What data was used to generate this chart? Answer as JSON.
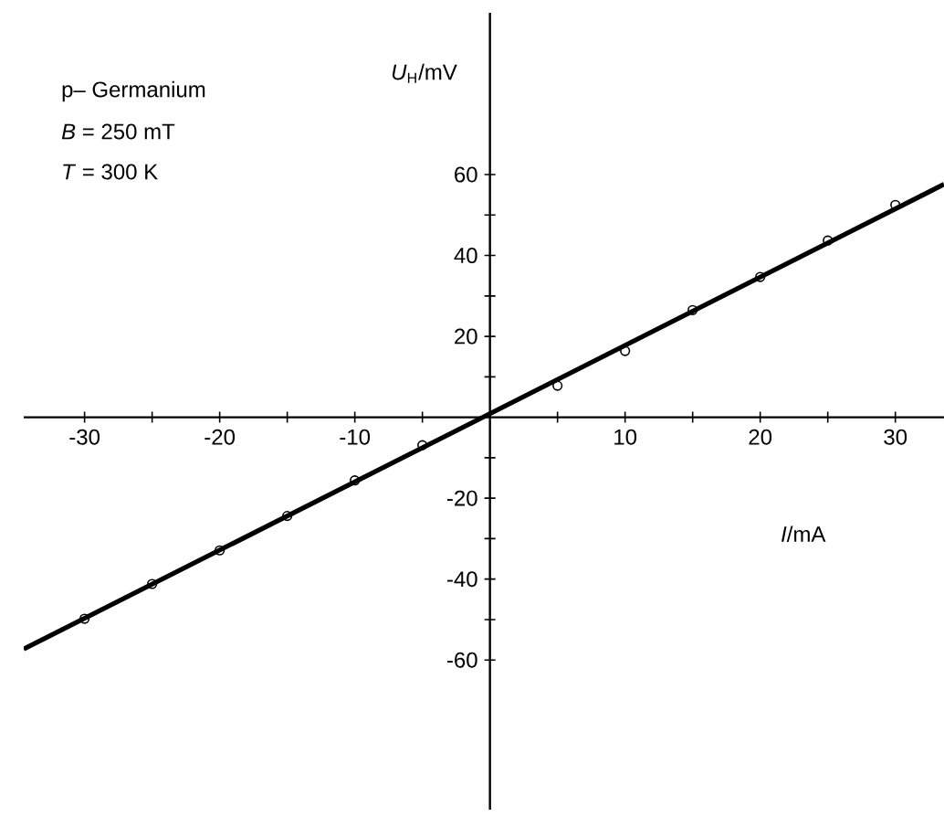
{
  "chart_data": {
    "type": "scatter",
    "xlabel": "*I*/mA",
    "ylabel": "*U*$_{H}$/mV",
    "annotations": [
      "p– Germanium",
      "*B* = 250 mT",
      "*T* = 300 K"
    ],
    "xlim": [
      -34.5,
      33.6
    ],
    "ylim": [
      -97,
      100
    ],
    "xticks": [
      -30,
      {
        "value": -25,
        "label": null
      },
      -20,
      {
        "value": -15,
        "label": null
      },
      -10,
      {
        "value": -5,
        "label": null
      },
      {
        "value": 5,
        "label": null
      },
      10,
      {
        "value": 15,
        "label": null
      },
      20,
      {
        "value": 25,
        "label": null
      },
      30
    ],
    "yticks": [
      -60,
      {
        "value": -50,
        "label": null
      },
      -40,
      {
        "value": -30,
        "label": null
      },
      -20,
      {
        "value": -10,
        "label": null
      },
      {
        "value": 10,
        "label": null
      },
      20,
      {
        "value": 30,
        "label": null
      },
      40,
      {
        "value": 50,
        "label": null
      },
      60
    ],
    "grid": false,
    "series": [
      {
        "marker": "circle",
        "color": "#000000",
        "x": [
          -30,
          -25,
          -20,
          -15,
          -10,
          -5,
          5,
          10,
          15,
          20,
          25,
          30
        ],
        "values": [
          -49.8,
          -41.2,
          -32.9,
          -24.4,
          -15.6,
          -6.9,
          7.8,
          16.4,
          26.5,
          34.7,
          43.7,
          52.5
        ]
      },
      {
        "type": "line",
        "color": "#000000",
        "x": [
          -34.5,
          33.6
        ],
        "values": [
          -57.3,
          57.6
        ]
      }
    ]
  }
}
